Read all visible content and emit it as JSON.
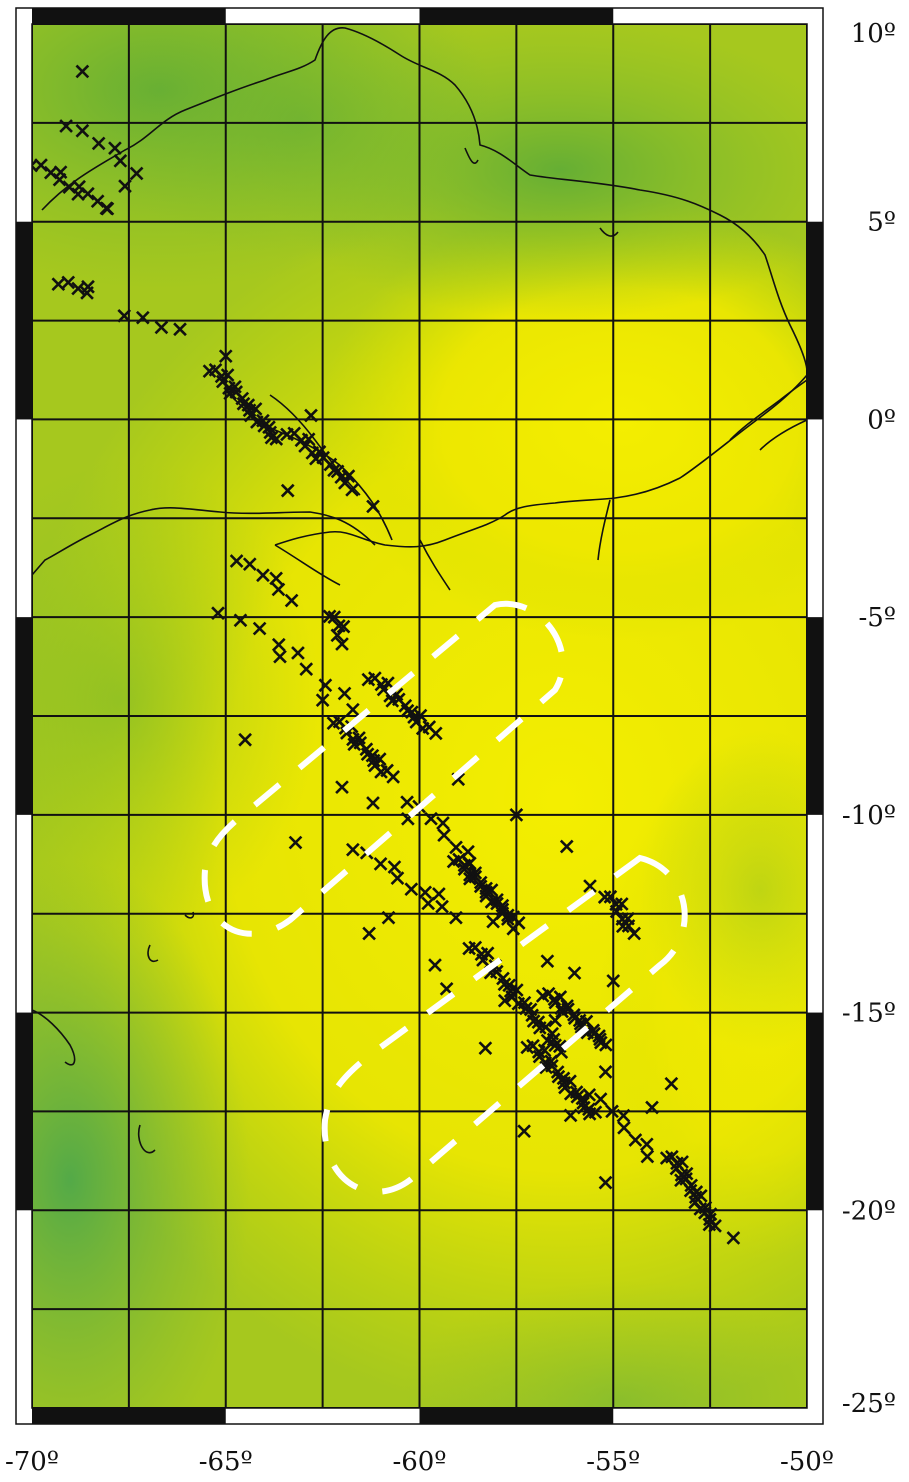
{
  "map": {
    "lon_range": [
      -70,
      -50
    ],
    "lat_range": [
      -25,
      10
    ],
    "grid_step_deg": 2.5,
    "x_tick_labels": [
      {
        "value": -70,
        "label": "-70º"
      },
      {
        "value": -65,
        "label": "-65º"
      },
      {
        "value": -60,
        "label": "-60º"
      },
      {
        "value": -55,
        "label": "-55º"
      },
      {
        "value": -50,
        "label": "-50º"
      }
    ],
    "y_tick_labels": [
      {
        "value": 10,
        "label": "10º"
      },
      {
        "value": 5,
        "label": "5º"
      },
      {
        "value": 0,
        "label": "0º"
      },
      {
        "value": -5,
        "label": "-5º"
      },
      {
        "value": -10,
        "label": "-10º"
      },
      {
        "value": -15,
        "label": "-15º"
      },
      {
        "value": -20,
        "label": "-20º"
      },
      {
        "value": -25,
        "label": "-25º"
      }
    ],
    "colors": {
      "green": "#5fae3c",
      "yellow": "#f2ec00",
      "grid": "#111111",
      "coast": "#111111",
      "marker": "#111111",
      "outline": "#ffffff"
    },
    "marker_icon": "x-cross-marker",
    "station_clusters": [
      {
        "lon": -69.9,
        "lat": 6.5,
        "lon2": -68.0,
        "lat2": 5.3,
        "n": 12
      },
      {
        "lon": -69.0,
        "lat": 7.5,
        "lon2": -67.3,
        "lat2": 6.3,
        "n": 6
      },
      {
        "lon": -69.2,
        "lat": 3.5,
        "lon2": -68.5,
        "lat2": 3.2,
        "n": 5
      },
      {
        "lon": -67.5,
        "lat": 2.7,
        "lon2": -66.3,
        "lat2": 2.2,
        "n": 4
      },
      {
        "lon": -65.3,
        "lat": 1.3,
        "lon2": -63.7,
        "lat2": -0.5,
        "n": 22
      },
      {
        "lon": -63.3,
        "lat": -0.3,
        "lon2": -61.7,
        "lat2": -1.7,
        "n": 16
      },
      {
        "lon": -64.6,
        "lat": -3.5,
        "lon2": -63.3,
        "lat2": -4.5,
        "n": 6
      },
      {
        "lon": -62.2,
        "lat": -4.9,
        "lon2": -62.0,
        "lat2": -5.6,
        "n": 6
      },
      {
        "lon": -64.5,
        "lat": -5.0,
        "lon2": -61.6,
        "lat2": -7.3,
        "n": 8
      },
      {
        "lon": -62.1,
        "lat": -7.6,
        "lon2": -60.8,
        "lat2": -9.0,
        "n": 18
      },
      {
        "lon": -61.2,
        "lat": -6.5,
        "lon2": -59.7,
        "lat2": -7.9,
        "n": 18
      },
      {
        "lon": -61.6,
        "lat": -10.8,
        "lon2": -59.1,
        "lat2": -12.6,
        "n": 10
      },
      {
        "lon": -59.0,
        "lat": -11.1,
        "lon2": -57.5,
        "lat2": -12.8,
        "n": 26
      },
      {
        "lon": -58.6,
        "lat": -13.3,
        "lon2": -56.3,
        "lat2": -16.0,
        "n": 30
      },
      {
        "lon": -56.7,
        "lat": -14.5,
        "lon2": -55.2,
        "lat2": -15.8,
        "n": 22
      },
      {
        "lon": -57.1,
        "lat": -15.8,
        "lon2": -55.5,
        "lat2": -17.6,
        "n": 24
      },
      {
        "lon": -55.1,
        "lat": -12.0,
        "lon2": -54.5,
        "lat2": -13.0,
        "n": 10
      },
      {
        "lon": -55.5,
        "lat": -17.0,
        "lon2": -54.0,
        "lat2": -18.6,
        "n": 8
      },
      {
        "lon": -53.5,
        "lat": -18.6,
        "lon2": -52.4,
        "lat2": -20.4,
        "n": 22
      },
      {
        "lon": -60.2,
        "lat": -9.6,
        "lon2": -58.6,
        "lat2": -11.2,
        "n": 8
      }
    ],
    "station_scatter": [
      {
        "lon": -68.7,
        "lat": 8.8
      },
      {
        "lon": -67.6,
        "lat": 5.9
      },
      {
        "lon": -65.0,
        "lat": 1.6
      },
      {
        "lon": -62.8,
        "lat": 0.1
      },
      {
        "lon": -63.4,
        "lat": -1.8
      },
      {
        "lon": -61.2,
        "lat": -2.2
      },
      {
        "lon": -65.2,
        "lat": -4.9
      },
      {
        "lon": -63.6,
        "lat": -6.0
      },
      {
        "lon": -62.5,
        "lat": -7.1
      },
      {
        "lon": -64.5,
        "lat": -8.1
      },
      {
        "lon": -62.0,
        "lat": -9.3
      },
      {
        "lon": -61.2,
        "lat": -9.7
      },
      {
        "lon": -63.2,
        "lat": -10.7
      },
      {
        "lon": -60.3,
        "lat": -10.1
      },
      {
        "lon": -57.5,
        "lat": -10.0
      },
      {
        "lon": -56.2,
        "lat": -10.8
      },
      {
        "lon": -59.0,
        "lat": -9.1
      },
      {
        "lon": -61.3,
        "lat": -13.0
      },
      {
        "lon": -59.6,
        "lat": -13.8
      },
      {
        "lon": -59.3,
        "lat": -14.4
      },
      {
        "lon": -57.8,
        "lat": -14.7
      },
      {
        "lon": -58.3,
        "lat": -15.9
      },
      {
        "lon": -57.3,
        "lat": -18.0
      },
      {
        "lon": -53.5,
        "lat": -16.8
      },
      {
        "lon": -51.9,
        "lat": -20.7
      },
      {
        "lon": -55.2,
        "lat": -16.5
      },
      {
        "lon": -55.2,
        "lat": -19.3
      },
      {
        "lon": -56.1,
        "lat": -17.6
      },
      {
        "lon": -54.0,
        "lat": -17.4
      },
      {
        "lon": -58.1,
        "lat": -12.7
      },
      {
        "lon": -59.5,
        "lat": -12.0
      },
      {
        "lon": -60.8,
        "lat": -12.6
      },
      {
        "lon": -56.7,
        "lat": -13.7
      },
      {
        "lon": -56.0,
        "lat": -14.0
      },
      {
        "lon": -55.0,
        "lat": -14.2
      },
      {
        "lon": -55.6,
        "lat": -11.8
      },
      {
        "lon": -56.5,
        "lat": -15.2
      }
    ]
  }
}
